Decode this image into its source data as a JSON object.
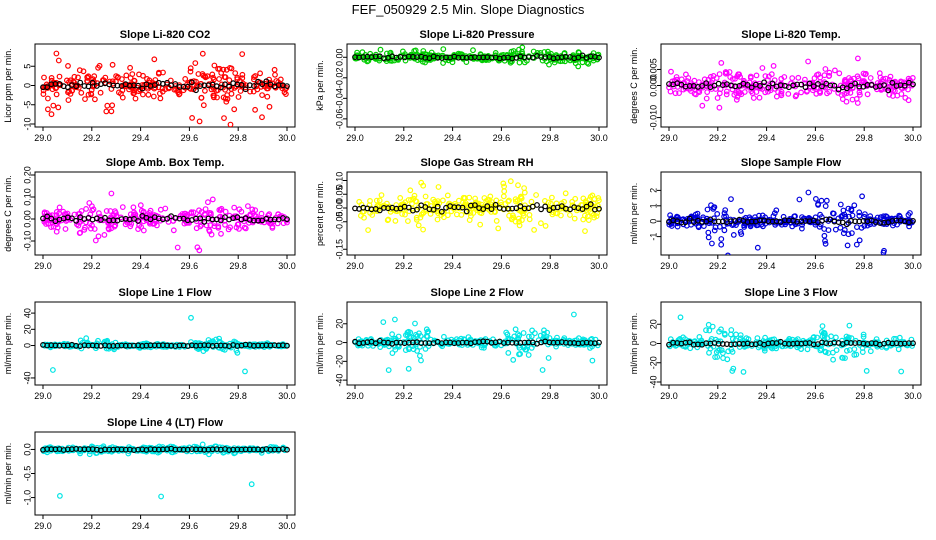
{
  "title": "FEF_050929  2.5 Min. Slope Diagnostics",
  "chart_data": [
    {
      "type": "scatter",
      "title": "Slope Li-820 CO2",
      "ylabel": "Licor ppm per min.",
      "ylim": [
        -10,
        10
      ],
      "yticks": [
        "-10",
        "-5",
        "0",
        "5"
      ],
      "yticks_v": [
        -10,
        -5,
        0,
        5
      ],
      "xlim": [
        29.0,
        30.0
      ],
      "xticks": [
        "29.0",
        "29.2",
        "29.4",
        "29.6",
        "29.8",
        "30.0"
      ],
      "series_color": "#ff0000",
      "spread": 3.2,
      "outlier": 8.5,
      "center": 0
    },
    {
      "type": "scatter",
      "title": "Slope Li-820 Pressure",
      "ylabel": "kPa per min.",
      "ylim": [
        -0.065,
        0.01
      ],
      "yticks": [
        "-0.06",
        "-0.04",
        "-0.02",
        "0.00"
      ],
      "yticks_v": [
        -0.06,
        -0.04,
        -0.02,
        0.0
      ],
      "xlim": [
        29.0,
        30.0
      ],
      "xticks": [
        "29.0",
        "29.2",
        "29.4",
        "29.6",
        "29.8",
        "30.0"
      ],
      "series_color": "#00cc00",
      "spread": 0.004,
      "outlier": 0.01,
      "center": 0
    },
    {
      "type": "scatter",
      "title": "Slope Li-820 Temp.",
      "ylabel": "degrees C per min.",
      "ylim": [
        -0.012,
        0.012
      ],
      "yticks": [
        "-0.010",
        "0.000",
        "0.005"
      ],
      "yticks_v": [
        -0.01,
        0.0,
        0.005
      ],
      "xlim": [
        29.0,
        30.0
      ],
      "xticks": [
        "29.0",
        "29.2",
        "29.4",
        "29.6",
        "29.8",
        "30.0"
      ],
      "series_color": "#ff00ff",
      "spread": 0.003,
      "outlier": 0.009,
      "center": 0
    },
    {
      "type": "scatter",
      "title": "Slope Amb. Box Temp.",
      "ylabel": "degrees C per min.",
      "ylim": [
        -0.15,
        0.2
      ],
      "yticks": [
        "-0.10",
        "0.00",
        "0.10",
        "0.20"
      ],
      "yticks_v": [
        -0.1,
        0.0,
        0.1,
        0.2
      ],
      "xlim": [
        29.0,
        30.0
      ],
      "xticks": [
        "29.0",
        "29.2",
        "29.4",
        "29.6",
        "29.8",
        "30.0"
      ],
      "series_color": "#ff00ff",
      "spread": 0.04,
      "outlier": 0.15,
      "center": 0
    },
    {
      "type": "scatter",
      "title": "Slope Gas Stream RH",
      "ylabel": "percent per min.",
      "ylim": [
        -0.16,
        0.12
      ],
      "yticks": [
        "-0.15",
        "-0.05",
        "0.00",
        "0.05",
        "0.10"
      ],
      "yticks_v": [
        -0.15,
        -0.05,
        0.0,
        0.05,
        0.1
      ],
      "xlim": [
        29.0,
        30.0
      ],
      "xticks": [
        "29.0",
        "29.2",
        "29.4",
        "29.6",
        "29.8",
        "30.0"
      ],
      "series_color": "#ffff00",
      "spread": 0.04,
      "outlier": 0.12,
      "center": 0
    },
    {
      "type": "scatter",
      "title": "Slope Sample Flow",
      "ylabel": "ml/min per min.",
      "ylim": [
        -2,
        3
      ],
      "yticks": [
        "-1",
        "0",
        "1",
        "2"
      ],
      "yticks_v": [
        -1,
        0,
        1,
        2
      ],
      "xlim": [
        29.0,
        30.0
      ],
      "xticks": [
        "29.0",
        "29.2",
        "29.4",
        "29.6",
        "29.8",
        "30.0"
      ],
      "series_color": "#0000dd",
      "spread": 0.4,
      "outlier": 2.3,
      "center": 0
    },
    {
      "type": "scatter",
      "title": "Slope Line 1 Flow",
      "ylabel": "ml/min per min.",
      "ylim": [
        -45,
        50
      ],
      "yticks": [
        "-40",
        "0",
        "20",
        "40"
      ],
      "yticks_v": [
        -40,
        0,
        20,
        40
      ],
      "xlim": [
        29.0,
        30.0
      ],
      "xticks": [
        "29.0",
        "29.2",
        "29.4",
        "29.6",
        "29.8",
        "30.0"
      ],
      "series_color": "#00e5e5",
      "spread": 2,
      "outlier": 40,
      "center": 0
    },
    {
      "type": "scatter",
      "title": "Slope Line 2 Flow",
      "ylabel": "ml/min per min.",
      "ylim": [
        -42,
        40
      ],
      "yticks": [
        "-40",
        "-20",
        "0",
        "20"
      ],
      "yticks_v": [
        -40,
        -20,
        0,
        20
      ],
      "xlim": [
        29.0,
        30.0
      ],
      "xticks": [
        "29.0",
        "29.2",
        "29.4",
        "29.6",
        "29.8",
        "30.0"
      ],
      "series_color": "#00e5e5",
      "spread": 4,
      "outlier": 30,
      "center": 0
    },
    {
      "type": "scatter",
      "title": "Slope Line 3 Flow",
      "ylabel": "ml/min per min.",
      "ylim": [
        -40,
        40
      ],
      "yticks": [
        "-40",
        "-20",
        "0",
        "20"
      ],
      "yticks_v": [
        -40,
        -20,
        0,
        20
      ],
      "xlim": [
        29.0,
        30.0
      ],
      "xticks": [
        "29.0",
        "29.2",
        "29.4",
        "29.6",
        "29.8",
        "30.0"
      ],
      "series_color": "#00e5e5",
      "spread": 5,
      "outlier": 30,
      "center": 0
    },
    {
      "type": "scatter",
      "title": "Slope Line 4 (LT) Flow",
      "ylabel": "ml/min per min.",
      "ylim": [
        -1.3,
        0.3
      ],
      "yticks": [
        "-1.0",
        "-0.5",
        "0.0"
      ],
      "yticks_v": [
        -1.0,
        -0.5,
        0.0
      ],
      "xlim": [
        29.0,
        30.0
      ],
      "xticks": [
        "29.0",
        "29.2",
        "29.4",
        "29.6",
        "29.8",
        "30.0"
      ],
      "series_color": "#00e5e5",
      "spread": 0.05,
      "outlier": 1.2,
      "center": 0
    }
  ]
}
